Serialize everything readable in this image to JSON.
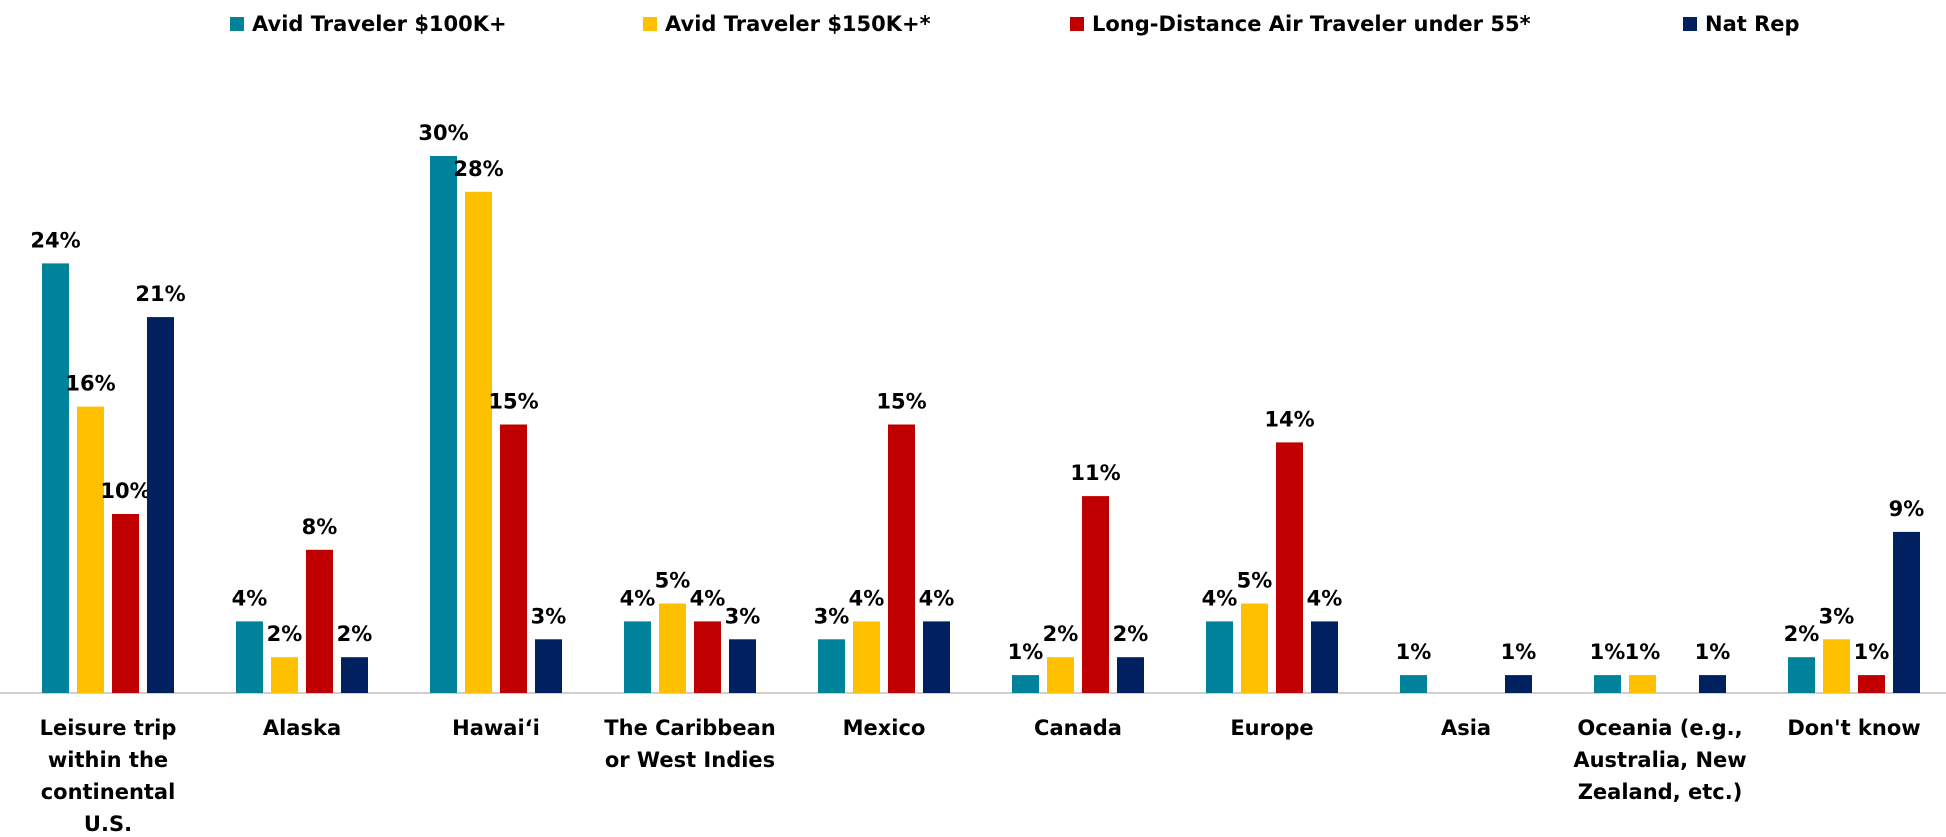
{
  "chart_data": {
    "type": "bar",
    "categories": [
      "Leisure trip within the continental U.S.",
      "Alaska",
      "Hawai‘i",
      "The Caribbean or West Indies",
      "Mexico",
      "Canada",
      "Europe",
      "Asia",
      "Oceania (e.g., Australia, New Zealand, etc.)",
      "Don't know"
    ],
    "series": [
      {
        "name": "Avid Traveler $100K+",
        "color": "#00829b",
        "values": [
          24,
          4,
          30,
          4,
          3,
          1,
          4,
          1,
          1,
          2
        ],
        "value_labels": [
          "24%",
          "4%",
          "30%",
          "4%",
          "3%",
          "1%",
          "4%",
          "1%",
          "1%",
          "2%"
        ]
      },
      {
        "name": "Avid Traveler $150K+*",
        "color": "#ffc000",
        "values": [
          16,
          2,
          28,
          5,
          4,
          2,
          5,
          null,
          1,
          3
        ],
        "value_labels": [
          "16%",
          "2%",
          "28%",
          "5%",
          "4%",
          "2%",
          "5%",
          null,
          "1%",
          "3%"
        ]
      },
      {
        "name": "Long-Distance Air Traveler under 55*",
        "color": "#c00000",
        "values": [
          10,
          8,
          15,
          4,
          15,
          11,
          14,
          null,
          null,
          1
        ],
        "value_labels": [
          "10%",
          "8%",
          "15%",
          "4%",
          "15%",
          "11%",
          "14%",
          null,
          null,
          "1%"
        ]
      },
      {
        "name": "Nat Rep",
        "color": "#002060",
        "values": [
          21,
          2,
          3,
          3,
          4,
          2,
          4,
          1,
          1,
          9
        ],
        "value_labels": [
          "21%",
          "2%",
          "3%",
          "3%",
          "4%",
          "2%",
          "4%",
          "1%",
          "1%",
          "9%"
        ]
      }
    ],
    "legend": "top"
  }
}
